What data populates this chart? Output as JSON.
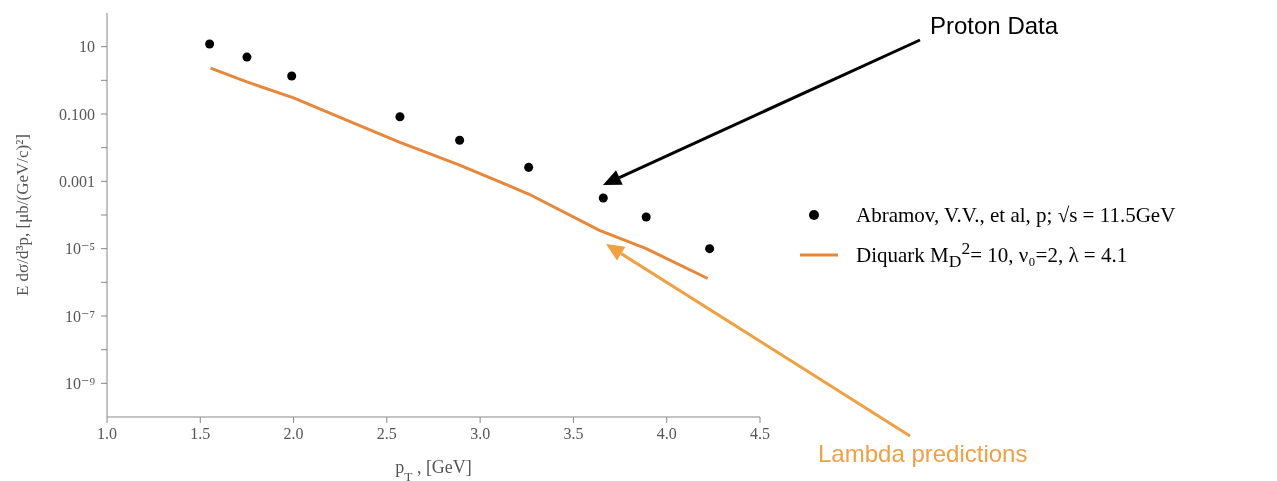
{
  "chart_data": {
    "type": "scatter",
    "xlabel": "p$_{T}$ , [GeV]",
    "ylabel": "E dσ/d³p, [μb/(GeV/c)²]",
    "log": "y",
    "grid": false,
    "legend": "right",
    "xlim": [
      1.0,
      4.5
    ],
    "xticks": [
      {
        "value": 1,
        "label": "1.0"
      },
      {
        "value": 1.5,
        "label": "1.5"
      },
      {
        "value": 2,
        "label": "2.0"
      },
      {
        "value": 2.5,
        "label": "2.5"
      },
      {
        "value": 3,
        "label": "3.0"
      },
      {
        "value": 3.5,
        "label": "3.5"
      },
      {
        "value": 4,
        "label": "4.0"
      },
      {
        "value": 4.5,
        "label": "4.5"
      }
    ],
    "ylim": [
      1e-10,
      100
    ],
    "yticks": [
      {
        "value": 10,
        "label": "10"
      },
      {
        "value": 1,
        "label": null
      },
      {
        "value": 0.1,
        "label": "0.100"
      },
      {
        "value": 0.01,
        "label": null
      },
      {
        "value": 0.001,
        "label": "0.001"
      },
      {
        "value": 0.0001,
        "label": null
      },
      {
        "value": 1e-05,
        "label": "10⁻⁵"
      },
      {
        "value": 1e-06,
        "label": null
      },
      {
        "value": 1e-07,
        "label": "10⁻⁷"
      },
      {
        "value": 1e-08,
        "label": null
      },
      {
        "value": 1e-09,
        "label": "10⁻⁹"
      }
    ],
    "series": [
      {
        "name": "Abramov, V.V., et al, p;  √s  = 11.5GeV",
        "marker": "circle",
        "color": "#000000",
        "x": [
          1.55,
          1.75,
          1.99,
          2.57,
          2.89,
          3.26,
          3.66,
          3.89,
          4.23
        ],
        "values": [
          12,
          4.9,
          1.35,
          0.083,
          0.0166,
          0.0026,
          0.00032,
          8.7e-05,
          1e-05
        ]
      },
      {
        "name": "Diquark M$_{D}$$^{2}$= 10, ν₀=2, λ = 4.1",
        "type": "line",
        "marker": "none",
        "line_style": "solid",
        "color": "#e8873a",
        "x": [
          1.555,
          1.75,
          2.0,
          2.3,
          2.57,
          2.88,
          3.26,
          3.64,
          3.89,
          4.22
        ],
        "values": [
          2.3,
          0.9,
          0.3,
          0.06,
          0.0144,
          0.0032,
          0.00042,
          3.5e-05,
          1e-05,
          1.3e-06
        ]
      }
    ],
    "annotations": [
      "Proton Data",
      "Lambda predictions"
    ]
  }
}
